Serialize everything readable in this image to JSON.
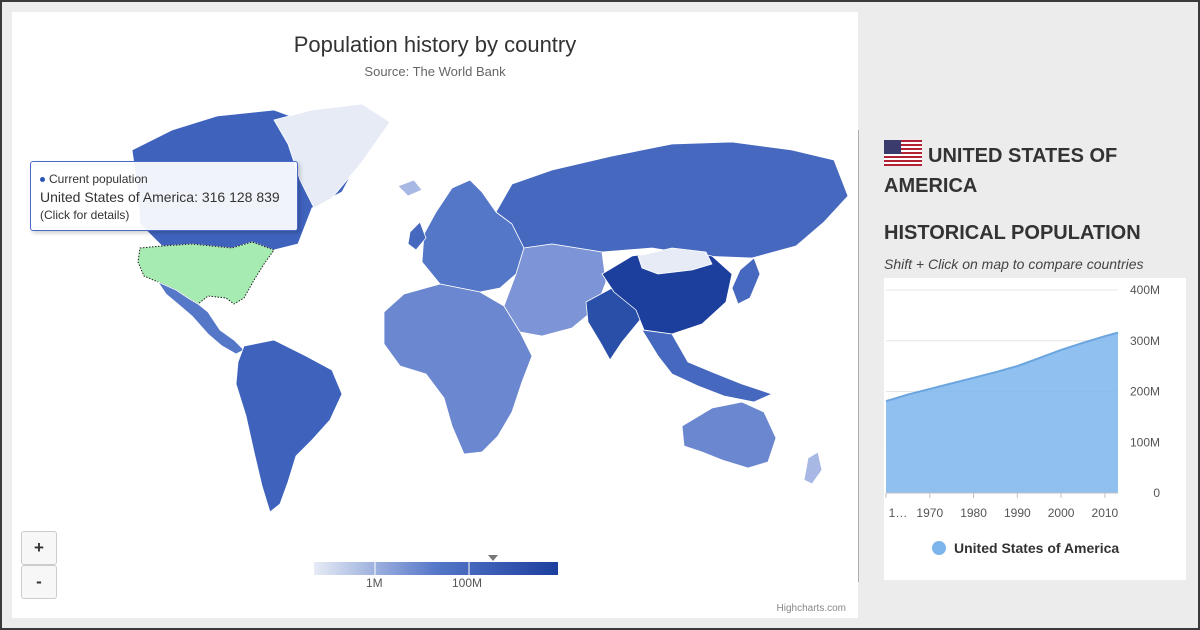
{
  "map": {
    "title": "Population history by country",
    "subtitle": "Source: The World Bank",
    "credits": "Highcharts.com",
    "zoom_in_label": "+",
    "zoom_out_label": "-",
    "colors": {
      "min": "#e6ebf5",
      "mid": "#5577c8",
      "max": "#1c3f9e",
      "selected": "#a6ebb2"
    },
    "color_axis": {
      "labels": [
        "1M",
        "100M"
      ],
      "marker_value": "316 128 839"
    },
    "tooltip": {
      "series": "Current population",
      "text": "United States of America: 316 128 839",
      "hint": "(Click for details)"
    }
  },
  "panel": {
    "flag_icon": "us-flag-icon",
    "country": "UNITED STATES OF AMERICA",
    "heading": "HISTORICAL POPULATION",
    "hint": "Shift + Click on map to compare countries"
  },
  "chart_data": {
    "type": "area",
    "title": "",
    "series": [
      {
        "name": "United States of America",
        "color": "#7cb5ec",
        "x": [
          1960,
          1965,
          1970,
          1975,
          1980,
          1985,
          1990,
          1995,
          2000,
          2005,
          2010,
          2013
        ],
        "values": [
          181,
          194,
          205,
          216,
          227,
          238,
          250,
          266,
          282,
          296,
          309,
          316
        ]
      }
    ],
    "x_ticks": [
      "1…",
      "1970",
      "1980",
      "1990",
      "2000",
      "2010"
    ],
    "y_ticks": [
      "0",
      "100M",
      "200M",
      "300M",
      "400M"
    ],
    "ylim": [
      0,
      400
    ],
    "xlim": [
      1960,
      2013
    ],
    "grid": true,
    "legend": "bottom-center"
  }
}
